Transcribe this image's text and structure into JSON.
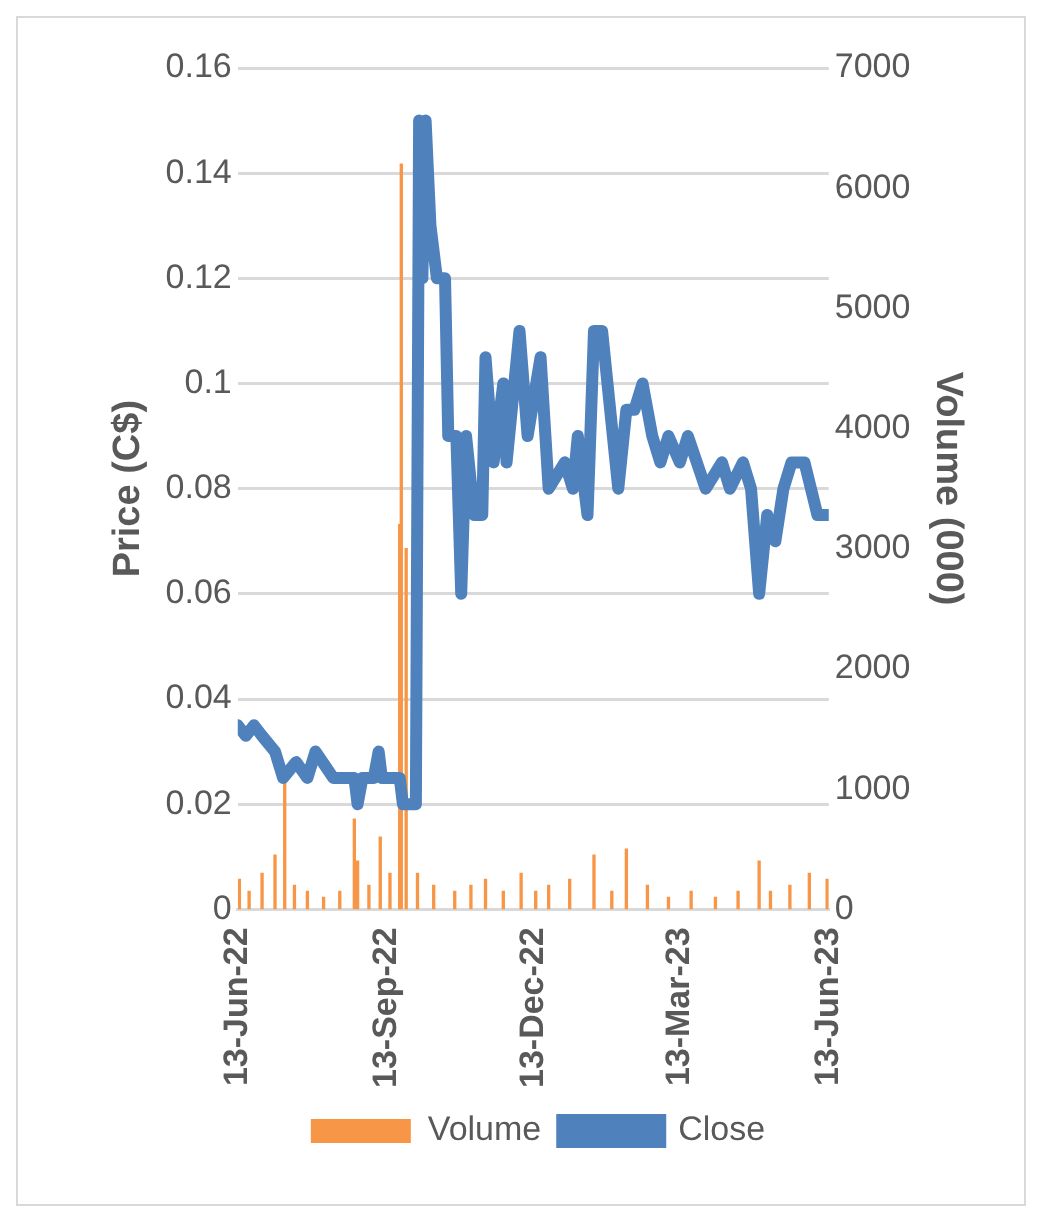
{
  "chart_data": {
    "type": "line",
    "ylabel": "Price (C$)",
    "y2label": "Volume (000)",
    "legend": "bottom",
    "grid": "y",
    "xlim": [
      "2022-06-13",
      "2023-06-13"
    ],
    "xticks": [
      {
        "value": "2022-06-13",
        "label": "13-Jun-22"
      },
      {
        "value": "2022-09-13",
        "label": "13-Sep-22"
      },
      {
        "value": "2022-12-13",
        "label": "13-Dec-22"
      },
      {
        "value": "2023-03-13",
        "label": "13-Mar-23"
      },
      {
        "value": "2023-06-13",
        "label": "13-Jun-23"
      }
    ],
    "ylim": [
      0,
      0.16
    ],
    "yticks": [
      0,
      0.02,
      0.04,
      0.06,
      0.08,
      0.1,
      0.12,
      0.14,
      0.16
    ],
    "y2lim": [
      0,
      7000
    ],
    "y2ticks": [
      0,
      1000,
      2000,
      3000,
      4000,
      5000,
      6000,
      7000
    ],
    "series": [
      {
        "name": "Volume",
        "type": "bar",
        "axis": "y2",
        "color": "#f79646",
        "x": [
          "2022-06-14",
          "2022-06-20",
          "2022-06-28",
          "2022-07-06",
          "2022-07-12",
          "2022-07-18",
          "2022-07-26",
          "2022-08-05",
          "2022-08-15",
          "2022-08-24",
          "2022-08-26",
          "2022-09-02",
          "2022-09-09",
          "2022-09-15",
          "2022-09-21",
          "2022-09-22",
          "2022-09-25",
          "2022-10-02",
          "2022-10-12",
          "2022-10-25",
          "2022-11-04",
          "2022-11-13",
          "2022-11-24",
          "2022-12-05",
          "2022-12-14",
          "2022-12-22",
          "2023-01-04",
          "2023-01-19",
          "2023-01-30",
          "2023-02-08",
          "2023-02-21",
          "2023-03-06",
          "2023-03-20",
          "2023-04-04",
          "2023-04-18",
          "2023-05-01",
          "2023-05-08",
          "2023-05-20",
          "2023-06-01",
          "2023-06-12"
        ],
        "values": [
          250,
          150,
          300,
          450,
          1050,
          200,
          150,
          100,
          150,
          750,
          400,
          200,
          600,
          300,
          3200,
          6200,
          3000,
          300,
          200,
          150,
          200,
          250,
          150,
          300,
          150,
          200,
          250,
          450,
          150,
          500,
          200,
          100,
          150,
          100,
          150,
          400,
          150,
          200,
          300,
          250
        ]
      },
      {
        "name": "Close",
        "color": "#4f81bd",
        "x": [
          "2022-06-13",
          "2022-06-18",
          "2022-06-23",
          "2022-06-28",
          "2022-07-06",
          "2022-07-11",
          "2022-07-19",
          "2022-07-26",
          "2022-07-31",
          "2022-08-11",
          "2022-08-24",
          "2022-08-26",
          "2022-08-29",
          "2022-09-05",
          "2022-09-08",
          "2022-09-10",
          "2022-09-21",
          "2022-09-23",
          "2022-10-01",
          "2022-10-03",
          "2022-10-05",
          "2022-10-07",
          "2022-10-10",
          "2022-10-14",
          "2022-10-19",
          "2022-10-21",
          "2022-10-26",
          "2022-10-29",
          "2022-11-01",
          "2022-11-06",
          "2022-11-11",
          "2022-11-13",
          "2022-11-18",
          "2022-11-24",
          "2022-11-26",
          "2022-12-04",
          "2022-12-09",
          "2022-12-17",
          "2022-12-22",
          "2023-01-01",
          "2023-01-06",
          "2023-01-09",
          "2023-01-15",
          "2023-01-19",
          "2023-01-24",
          "2023-01-29",
          "2023-02-03",
          "2023-02-08",
          "2023-02-13",
          "2023-02-18",
          "2023-02-24",
          "2023-03-01",
          "2023-03-06",
          "2023-03-13",
          "2023-03-18",
          "2023-03-29",
          "2023-04-08",
          "2023-04-13",
          "2023-04-21",
          "2023-04-26",
          "2023-05-01",
          "2023-05-06",
          "2023-05-11",
          "2023-05-16",
          "2023-05-21",
          "2023-05-29",
          "2023-06-06",
          "2023-06-13"
        ],
        "values": [
          0.035,
          0.033,
          0.035,
          0.033,
          0.03,
          0.025,
          0.028,
          0.025,
          0.03,
          0.025,
          0.025,
          0.02,
          0.025,
          0.025,
          0.03,
          0.025,
          0.025,
          0.02,
          0.02,
          0.15,
          0.12,
          0.15,
          0.13,
          0.12,
          0.12,
          0.09,
          0.09,
          0.06,
          0.09,
          0.075,
          0.075,
          0.105,
          0.085,
          0.1,
          0.085,
          0.11,
          0.09,
          0.105,
          0.08,
          0.085,
          0.08,
          0.09,
          0.075,
          0.11,
          0.11,
          0.095,
          0.08,
          0.095,
          0.095,
          0.1,
          0.09,
          0.085,
          0.09,
          0.085,
          0.09,
          0.08,
          0.085,
          0.08,
          0.085,
          0.08,
          0.06,
          0.075,
          0.07,
          0.08,
          0.085,
          0.085,
          0.075,
          0.075
        ]
      }
    ]
  }
}
